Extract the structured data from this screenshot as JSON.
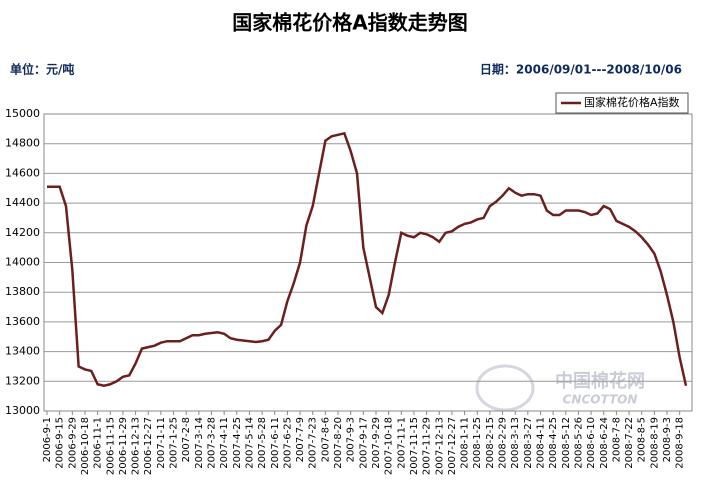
{
  "chart_data": {
    "type": "line",
    "title": "国家棉花价格A指数走势图",
    "unit_label": "单位：元/吨",
    "date_range": "日期：2006/09/01---2008/10/06",
    "watermark": "中国棉花网",
    "watermark_sub": "CNCOTTON",
    "categories": [
      "2006-9-1",
      null,
      "2006-9-15",
      null,
      "2006-9-29",
      null,
      "2006-10-18",
      null,
      "2006-11-1",
      null,
      "2006-11-15",
      null,
      "2006-11-29",
      null,
      "2006-12-13",
      null,
      "2006-12-27",
      null,
      "2007-1-11",
      null,
      "2007-1-25",
      null,
      "2007-2-8",
      null,
      "2007-3-14",
      null,
      "2007-3-28",
      null,
      "2007-4-11",
      null,
      "2007-4-25",
      null,
      "2007-5-14",
      null,
      "2007-5-28",
      null,
      "2007-6-11",
      null,
      "2007-6-25",
      null,
      "2007-7-9",
      null,
      "2007-7-23",
      null,
      "2007-8-6",
      null,
      "2007-8-20",
      null,
      "2007-9-3",
      null,
      "2007-9-17",
      null,
      "2007-9-29",
      null,
      "2007-10-18",
      null,
      "2007-11-1",
      null,
      "2007-11-15",
      null,
      "2007-11-29",
      null,
      "2007-12-13",
      null,
      "2007-12-27",
      null,
      "2008-1-11",
      null,
      "2008-1-25",
      null,
      "2008-2-15",
      null,
      "2008-2-29",
      null,
      "2008-3-13",
      null,
      "2008-3-27",
      null,
      "2008-4-11",
      null,
      "2008-4-25",
      null,
      "2008-5-12",
      null,
      "2008-5-26",
      null,
      "2008-6-10",
      null,
      "2008-6-24",
      null,
      "2008-7-8",
      null,
      "2008-7-22",
      null,
      "2008-8-5",
      null,
      "2008-8-19",
      null,
      "2008-9-3",
      null,
      "2008-9-18",
      null
    ],
    "series": [
      {
        "name": "国家棉花价格A指数",
        "color": "#6b1f1f",
        "values": [
          14510,
          14510,
          14510,
          14380,
          13950,
          13300,
          13280,
          13270,
          13180,
          13170,
          13180,
          13200,
          13230,
          13240,
          13320,
          13420,
          13430,
          13440,
          13460,
          13470,
          13470,
          13470,
          13490,
          13510,
          13510,
          13520,
          13525,
          13530,
          13520,
          13490,
          13480,
          13475,
          13470,
          13465,
          13470,
          13480,
          13540,
          13580,
          13740,
          13860,
          14000,
          14250,
          14380,
          14600,
          14820,
          14850,
          14860,
          14870,
          14750,
          14600,
          14100,
          13900,
          13700,
          13660,
          13780,
          14000,
          14200,
          14180,
          14170,
          14200,
          14190,
          14170,
          14140,
          14200,
          14210,
          14240,
          14260,
          14270,
          14290,
          14300,
          14380,
          14410,
          14450,
          14500,
          14470,
          14450,
          14460,
          14460,
          14450,
          14350,
          14320,
          14320,
          14350,
          14350,
          14350,
          14340,
          14320,
          14330,
          14380,
          14360,
          14280,
          14260,
          14240,
          14210,
          14170,
          14120,
          14060,
          13940,
          13780,
          13600,
          13360,
          13170
        ]
      }
    ],
    "ylim": [
      13000,
      15000
    ],
    "yticks": [
      13000,
      13200,
      13400,
      13600,
      13800,
      14000,
      14200,
      14400,
      14600,
      14800,
      15000
    ],
    "grid": true
  }
}
